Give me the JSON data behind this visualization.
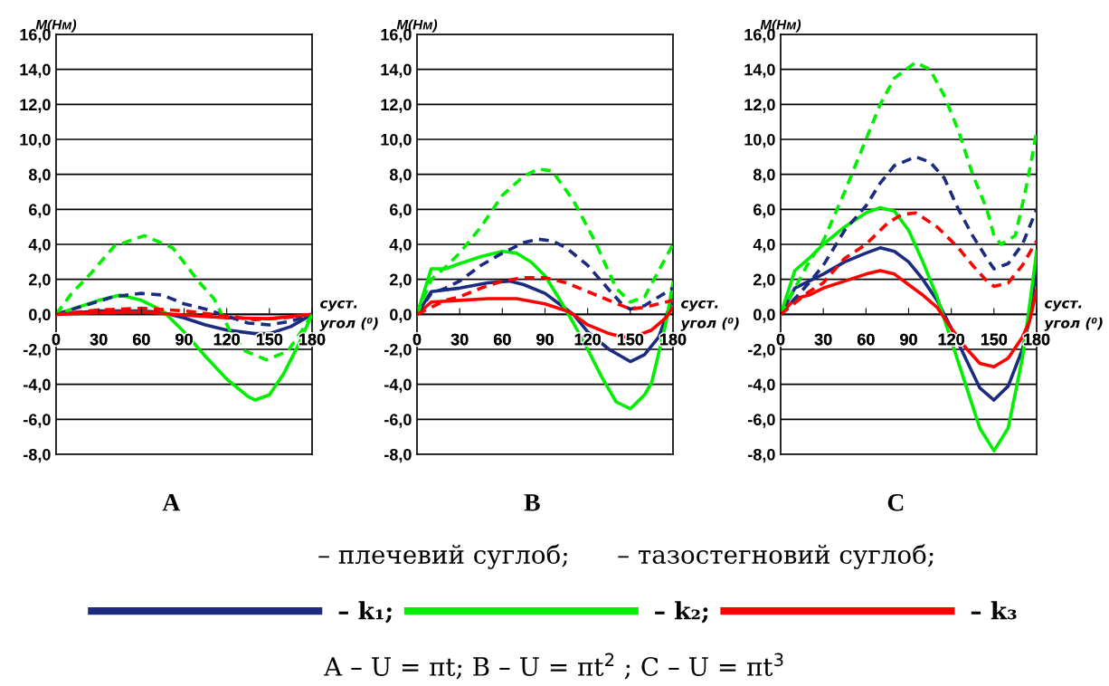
{
  "chart_data": [
    {
      "type": "line",
      "title": "A",
      "ylabel": "M(Нм)",
      "xlabel": "суст.\nугол (⁰)",
      "xlim": [
        0,
        180
      ],
      "ylim": [
        -8,
        16
      ],
      "xticks": [
        0,
        30,
        60,
        90,
        120,
        150,
        180
      ],
      "yticks": [
        {
          "value": -8,
          "label": "-8,0"
        },
        {
          "value": -6,
          "label": "-6,0"
        },
        {
          "value": -4,
          "label": "-4,0"
        },
        {
          "value": -2,
          "label": "-2,0"
        },
        {
          "value": 0,
          "label": "0,0"
        },
        {
          "value": 2,
          "label": "2,0"
        },
        {
          "value": 4,
          "label": "4,0"
        },
        {
          "value": 6,
          "label": "6,0"
        },
        {
          "value": 8,
          "label": "8,0"
        },
        {
          "value": 10,
          "label": "10,0"
        },
        {
          "value": 12,
          "label": "12,0"
        },
        {
          "value": 14,
          "label": "14,0"
        },
        {
          "value": 16,
          "label": "16,0"
        }
      ],
      "grid": "y",
      "legend": "bottom",
      "annotations": [
        "– плечевий суглоб;",
        "– тазостегновий суглоб;",
        "A – U = πt; B – U = πt$^{2}$ ; C – U = πt$^{3}$"
      ],
      "series": [
        {
          "name": "– k₁;",
          "color": "#1a2b80",
          "line_style": "solid",
          "x": [
            0,
            30,
            60,
            75,
            90,
            105,
            120,
            140,
            150,
            165,
            180
          ],
          "values": [
            0,
            0.2,
            0.2,
            0.1,
            -0.2,
            -0.6,
            -0.9,
            -1.1,
            -1.1,
            -0.7,
            0
          ]
        },
        {
          "name": "– k₂;",
          "color": "#00ee00",
          "line_style": "solid",
          "x": [
            0,
            30,
            45,
            60,
            75,
            90,
            105,
            120,
            135,
            140,
            150,
            160,
            170,
            180
          ],
          "values": [
            0,
            0.8,
            1.1,
            0.8,
            0.2,
            -1.0,
            -2.4,
            -3.7,
            -4.7,
            -4.9,
            -4.6,
            -3.4,
            -1.8,
            0
          ]
        },
        {
          "name": "– k₃",
          "color": "#ff0000",
          "line_style": "solid",
          "x": [
            0,
            30,
            60,
            90,
            120,
            150,
            180
          ],
          "values": [
            0,
            0.1,
            0.15,
            -0.05,
            -0.2,
            -0.25,
            0
          ]
        },
        {
          "color": "#1a2b80",
          "line_style": "dashed",
          "x": [
            0,
            20,
            40,
            60,
            75,
            90,
            105,
            120,
            135,
            150,
            165,
            180
          ],
          "values": [
            0,
            0.5,
            1.0,
            1.2,
            1.1,
            0.6,
            0.3,
            -0.1,
            -0.5,
            -0.6,
            -0.4,
            0
          ]
        },
        {
          "color": "#00ee00",
          "line_style": "dashed",
          "x": [
            0,
            11,
            24,
            41,
            62,
            82,
            101,
            111,
            122,
            133,
            148,
            163,
            173,
            180
          ],
          "values": [
            0,
            1.2,
            2.3,
            3.9,
            4.5,
            3.8,
            1.8,
            0.9,
            -0.9,
            -2.1,
            -2.6,
            -2.1,
            -0.9,
            0
          ]
        },
        {
          "color": "#ff0000",
          "line_style": "dashed",
          "x": [
            0,
            30,
            60,
            90,
            120,
            140,
            160,
            180
          ],
          "values": [
            0,
            0.25,
            0.35,
            0.2,
            -0.1,
            -0.3,
            -0.2,
            0
          ]
        }
      ]
    },
    {
      "type": "line",
      "title": "B",
      "ylabel": "M(Нм)",
      "xlabel": "суст.\nугол (⁰)",
      "xlim": [
        0,
        180
      ],
      "ylim": [
        -8,
        16
      ],
      "xticks": [
        0,
        30,
        60,
        90,
        120,
        150,
        180
      ],
      "yticks": [
        {
          "value": -8,
          "label": "-8,0"
        },
        {
          "value": -6,
          "label": "-6,0"
        },
        {
          "value": -4,
          "label": "-4,0"
        },
        {
          "value": -2,
          "label": "-2,0"
        },
        {
          "value": 0,
          "label": "0,0"
        },
        {
          "value": 2,
          "label": "2,0"
        },
        {
          "value": 4,
          "label": "4,0"
        },
        {
          "value": 6,
          "label": "6,0"
        },
        {
          "value": 8,
          "label": "8,0"
        },
        {
          "value": 10,
          "label": "10,0"
        },
        {
          "value": 12,
          "label": "12,0"
        },
        {
          "value": 14,
          "label": "14,0"
        },
        {
          "value": 16,
          "label": "16,0"
        }
      ],
      "grid": "y",
      "series": [
        {
          "color": "#1a2b80",
          "line_style": "solid",
          "x": [
            0,
            10,
            30,
            50,
            65,
            75,
            90,
            100,
            110,
            120,
            135,
            150,
            160,
            170,
            180
          ],
          "values": [
            0,
            1.3,
            1.5,
            1.8,
            1.9,
            1.7,
            1.2,
            0.6,
            0,
            -1.0,
            -2.0,
            -2.7,
            -2.3,
            -1.3,
            1.0
          ]
        },
        {
          "color": "#00ee00",
          "line_style": "solid",
          "x": [
            0,
            10,
            20,
            30,
            45,
            60,
            70,
            80,
            90,
            100,
            110,
            120,
            130,
            140,
            150,
            160,
            165,
            170,
            175,
            180
          ],
          "values": [
            0,
            2.6,
            2.6,
            2.9,
            3.3,
            3.6,
            3.5,
            3.0,
            2.2,
            0.9,
            -0.5,
            -2.0,
            -3.6,
            -5.0,
            -5.4,
            -4.6,
            -3.9,
            -2.2,
            -0.5,
            1.8
          ]
        },
        {
          "color": "#ff0000",
          "line_style": "solid",
          "x": [
            0,
            10,
            30,
            50,
            70,
            90,
            105,
            110,
            120,
            135,
            145,
            155,
            165,
            175,
            180
          ],
          "values": [
            0,
            0.7,
            0.8,
            0.9,
            0.9,
            0.6,
            0.2,
            0,
            -0.6,
            -1.1,
            -1.3,
            -1.2,
            -0.9,
            -0.2,
            0.4
          ]
        },
        {
          "color": "#1a2b80",
          "line_style": "dashed",
          "x": [
            0,
            10,
            20,
            30,
            45,
            60,
            75,
            85,
            95,
            105,
            120,
            135,
            145,
            150,
            160,
            170,
            180
          ],
          "values": [
            0,
            1.2,
            1.5,
            1.9,
            2.8,
            3.5,
            4.1,
            4.3,
            4.2,
            3.8,
            2.8,
            1.4,
            0.5,
            0.3,
            0.5,
            1.0,
            1.5
          ]
        },
        {
          "color": "#00ee00",
          "line_style": "dashed",
          "x": [
            0,
            10,
            20,
            30,
            45,
            60,
            75,
            85,
            95,
            110,
            125,
            140,
            150,
            160,
            170,
            180
          ],
          "values": [
            0,
            2.0,
            2.7,
            3.5,
            5.0,
            6.8,
            7.9,
            8.3,
            8.2,
            6.5,
            4.2,
            1.5,
            0.7,
            1.0,
            2.5,
            4.0
          ]
        },
        {
          "color": "#ff0000",
          "line_style": "dashed",
          "x": [
            0,
            20,
            30,
            45,
            60,
            75,
            90,
            105,
            120,
            135,
            150,
            160,
            170,
            180
          ],
          "values": [
            0,
            0.8,
            1.0,
            1.5,
            1.9,
            2.1,
            2.1,
            1.8,
            1.3,
            0.8,
            0.3,
            0.4,
            0.6,
            0.8
          ]
        }
      ]
    },
    {
      "type": "line",
      "title": "C",
      "ylabel": "M(Нм)",
      "xlabel": "суст.\nугол (⁰)",
      "xlim": [
        0,
        180
      ],
      "ylim": [
        -8,
        16
      ],
      "xticks": [
        0,
        30,
        60,
        90,
        120,
        150,
        180
      ],
      "yticks": [
        {
          "value": -8,
          "label": "-8,0"
        },
        {
          "value": -6,
          "label": "-6,0"
        },
        {
          "value": -4,
          "label": "-4,0"
        },
        {
          "value": -2,
          "label": "-2,0"
        },
        {
          "value": 0,
          "label": "0,0"
        },
        {
          "value": 2,
          "label": "2,0"
        },
        {
          "value": 4,
          "label": "4,0"
        },
        {
          "value": 6,
          "label": "6,0"
        },
        {
          "value": 8,
          "label": "8,0"
        },
        {
          "value": 10,
          "label": "10,0"
        },
        {
          "value": 12,
          "label": "12,0"
        },
        {
          "value": 14,
          "label": "14,0"
        },
        {
          "value": 16,
          "label": "16,0"
        }
      ],
      "grid": "y",
      "series": [
        {
          "color": "#1a2b80",
          "line_style": "solid",
          "x": [
            0,
            10,
            20,
            30,
            45,
            60,
            70,
            80,
            90,
            100,
            110,
            120,
            130,
            140,
            150,
            160,
            170,
            175,
            180
          ],
          "values": [
            0,
            1.5,
            1.9,
            2.3,
            3.0,
            3.5,
            3.8,
            3.6,
            3.0,
            2.0,
            0.8,
            -0.8,
            -2.5,
            -4.2,
            -4.9,
            -4.1,
            -2.0,
            -0.3,
            2.8
          ]
        },
        {
          "color": "#00ee00",
          "line_style": "solid",
          "x": [
            0,
            10,
            20,
            30,
            45,
            60,
            70,
            80,
            90,
            100,
            110,
            120,
            130,
            140,
            150,
            160,
            170,
            175,
            180
          ],
          "values": [
            0,
            2.5,
            3.2,
            4.0,
            5.0,
            5.8,
            6.1,
            5.9,
            4.8,
            3.0,
            1.0,
            -1.5,
            -4.0,
            -6.5,
            -7.8,
            -6.5,
            -2.5,
            0.5,
            3.6
          ]
        },
        {
          "color": "#ff0000",
          "line_style": "solid",
          "x": [
            0,
            10,
            20,
            30,
            45,
            60,
            70,
            80,
            90,
            100,
            110,
            120,
            130,
            140,
            150,
            160,
            170,
            175,
            180
          ],
          "values": [
            0,
            0.9,
            1.1,
            1.5,
            1.9,
            2.3,
            2.5,
            2.3,
            1.7,
            1.1,
            0.4,
            -0.8,
            -1.9,
            -2.8,
            -3.0,
            -2.5,
            -1.3,
            -0.4,
            1.4
          ]
        },
        {
          "color": "#1a2b80",
          "line_style": "dashed",
          "x": [
            0,
            20,
            30,
            45,
            60,
            70,
            80,
            95,
            105,
            115,
            125,
            135,
            145,
            150,
            160,
            170,
            180
          ],
          "values": [
            0,
            1.8,
            2.8,
            4.8,
            6.2,
            7.5,
            8.5,
            9.0,
            8.7,
            7.8,
            6.0,
            4.5,
            3.2,
            2.6,
            2.9,
            4.0,
            6.0
          ]
        },
        {
          "color": "#00ee00",
          "line_style": "dashed",
          "x": [
            0,
            10,
            20,
            30,
            45,
            60,
            70,
            80,
            95,
            105,
            115,
            125,
            135,
            145,
            150,
            155,
            165,
            172,
            178,
            180
          ],
          "values": [
            0,
            1.5,
            3.0,
            4.2,
            7.0,
            10.0,
            12.0,
            13.5,
            14.4,
            14.0,
            12.5,
            10.5,
            8.0,
            6.0,
            4.5,
            4.0,
            4.5,
            7.0,
            9.5,
            10.6
          ]
        },
        {
          "color": "#ff0000",
          "line_style": "dashed",
          "x": [
            0,
            20,
            30,
            45,
            60,
            75,
            85,
            95,
            110,
            125,
            135,
            145,
            150,
            160,
            170,
            180
          ],
          "values": [
            0,
            1.3,
            1.8,
            3.2,
            4.0,
            5.2,
            5.7,
            5.8,
            5.0,
            3.8,
            2.8,
            1.9,
            1.6,
            1.8,
            2.8,
            4.2
          ]
        }
      ]
    }
  ]
}
